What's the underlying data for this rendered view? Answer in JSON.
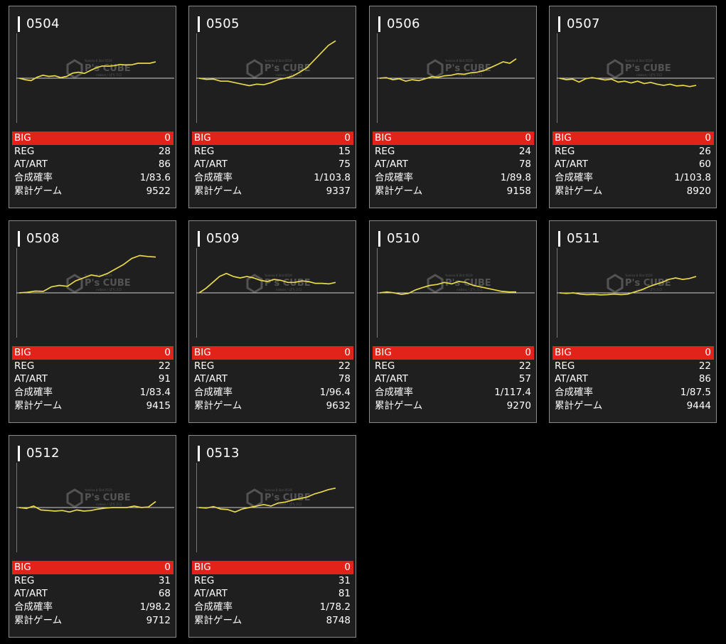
{
  "labels": {
    "big": "BIG",
    "reg": "REG",
    "at_art": "AT/ART",
    "combined_rate": "合成確率",
    "total_games": "累計ゲーム"
  },
  "watermark": {
    "brand": "P's CUBE",
    "line1": "Yumina 8 Slot 0519",
    "line2": "naboa / ぱちスロ"
  },
  "colors": {
    "line": "#e8d84a",
    "big_bar": "#e2231a",
    "card_bg": "#1f1f1f",
    "page_bg": "#000000"
  },
  "machines": [
    {
      "id": "0504",
      "big": "0",
      "reg": "28",
      "at_art": "86",
      "combined_rate": "1/83.6",
      "total_games": "9522",
      "trend": [
        0.0,
        -0.5,
        -0.8,
        0.3,
        1.0,
        0.6,
        0.8,
        0.2,
        0.6,
        1.7,
        2.0,
        1.6,
        2.6,
        3.5,
        4.1,
        4.0,
        4.2,
        4.6,
        4.4,
        4.5,
        5.0,
        5.0,
        5.0,
        5.5
      ]
    },
    {
      "id": "0505",
      "big": "0",
      "reg": "15",
      "at_art": "75",
      "combined_rate": "1/103.8",
      "total_games": "9337",
      "trend": [
        0.0,
        -0.4,
        -0.3,
        -1.0,
        -1.0,
        -1.5,
        -2.0,
        -2.5,
        -2.0,
        -2.2,
        -1.5,
        -0.5,
        0.0,
        0.7,
        2.0,
        3.5,
        6.0,
        8.5,
        11.0,
        12.5
      ]
    },
    {
      "id": "0506",
      "big": "0",
      "reg": "24",
      "at_art": "78",
      "combined_rate": "1/89.8",
      "total_games": "9158",
      "trend": [
        0.0,
        0.2,
        -0.5,
        -0.2,
        -1.0,
        -0.5,
        -0.8,
        -0.2,
        0.5,
        0.3,
        0.8,
        1.0,
        1.5,
        1.3,
        1.8,
        2.0,
        2.5,
        3.5,
        4.5,
        5.5,
        5.0,
        6.5
      ]
    },
    {
      "id": "0507",
      "big": "0",
      "reg": "26",
      "at_art": "60",
      "combined_rate": "1/103.8",
      "total_games": "8920",
      "trend": [
        0.0,
        -0.5,
        -0.3,
        -1.3,
        -0.2,
        0.2,
        -0.2,
        -0.6,
        -0.3,
        -1.3,
        -1.0,
        -1.6,
        -1.0,
        -1.8,
        -1.4,
        -2.0,
        -2.4,
        -2.0,
        -2.6,
        -2.4,
        -2.8,
        -2.4
      ]
    },
    {
      "id": "0508",
      "big": "0",
      "reg": "22",
      "at_art": "91",
      "combined_rate": "1/83.4",
      "total_games": "9415",
      "trend": [
        0.0,
        0.2,
        0.6,
        0.5,
        2.0,
        2.5,
        2.2,
        4.0,
        5.0,
        6.0,
        5.5,
        6.5,
        8.0,
        9.5,
        11.5,
        12.5,
        12.2,
        12.0
      ]
    },
    {
      "id": "0509",
      "big": "0",
      "reg": "22",
      "at_art": "78",
      "combined_rate": "1/96.4",
      "total_games": "9632",
      "trend": [
        0.0,
        1.5,
        3.5,
        5.5,
        6.5,
        5.5,
        5.0,
        5.5,
        5.0,
        4.2,
        3.8,
        4.5,
        4.2,
        3.5,
        3.5,
        4.0,
        3.8,
        3.2,
        3.2,
        3.0,
        3.5
      ]
    },
    {
      "id": "0510",
      "big": "0",
      "reg": "22",
      "at_art": "57",
      "combined_rate": "1/117.4",
      "total_games": "9270",
      "trend": [
        0.0,
        0.3,
        0.0,
        -0.5,
        -0.2,
        1.0,
        1.8,
        2.5,
        2.8,
        3.5,
        3.0,
        3.8,
        3.5,
        2.5,
        2.0,
        1.5,
        1.0,
        0.5,
        0.3,
        0.3
      ]
    },
    {
      "id": "0511",
      "big": "0",
      "reg": "22",
      "at_art": "86",
      "combined_rate": "1/87.5",
      "total_games": "9444",
      "trend": [
        0.0,
        -0.2,
        0.0,
        -0.4,
        -0.6,
        -0.5,
        -0.7,
        -0.6,
        -0.4,
        -0.6,
        -0.4,
        0.3,
        1.0,
        2.0,
        2.8,
        3.5,
        4.5,
        5.0,
        4.5,
        4.8,
        5.5
      ]
    },
    {
      "id": "0512",
      "big": "0",
      "reg": "31",
      "at_art": "68",
      "combined_rate": "1/98.2",
      "total_games": "9712",
      "trend": [
        0.0,
        -0.3,
        0.5,
        -0.8,
        -1.0,
        -1.2,
        -1.0,
        -1.5,
        -0.8,
        -1.2,
        -1.0,
        -0.5,
        -0.2,
        0.0,
        0.0,
        0.0,
        0.5,
        0.0,
        0.2,
        2.0
      ]
    },
    {
      "id": "0513",
      "big": "0",
      "reg": "31",
      "at_art": "81",
      "combined_rate": "1/78.2",
      "total_games": "8748",
      "trend": [
        0.0,
        -0.2,
        0.3,
        -0.5,
        -0.7,
        -1.5,
        -0.5,
        0.0,
        0.5,
        1.0,
        0.5,
        1.5,
        1.8,
        2.5,
        3.0,
        3.5,
        4.5,
        5.2,
        6.0,
        6.5
      ]
    }
  ]
}
